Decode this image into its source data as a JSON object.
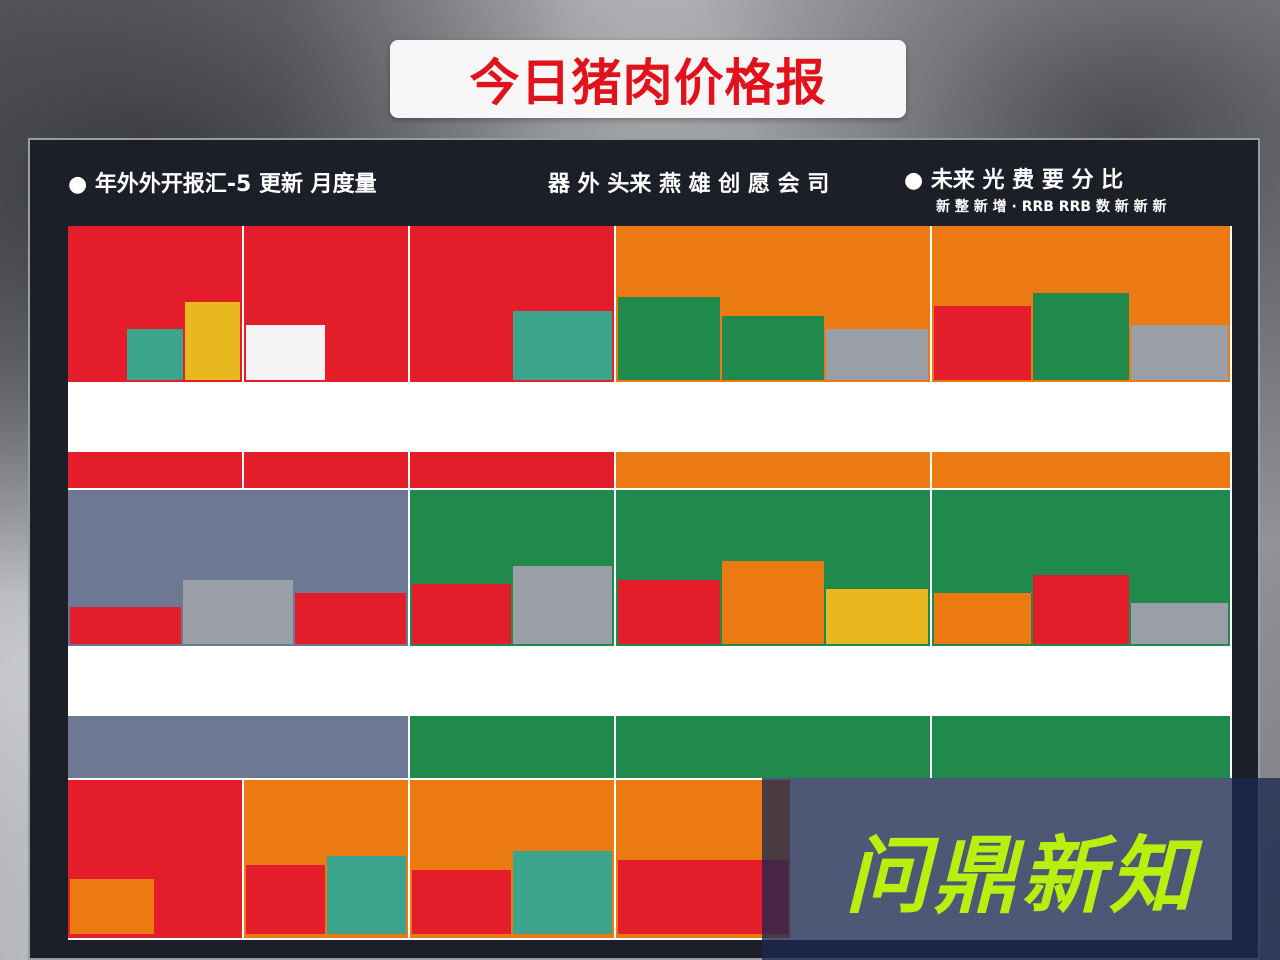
{
  "title": "今日猪肉价格报",
  "header": {
    "left": "● 年外外开报汇-5 更新 月度量",
    "mid": "器 外 头来 燕 雄 创 愿 会 司",
    "right": "● 未来 光 费 要 分 比",
    "right_sub": "新 整 新 增 · RRB RRB 数 新 新 新"
  },
  "colors": {
    "red": "#e41d2b",
    "green": "#1f8a4c",
    "orange": "#ec7a12",
    "slate": "#6c7894",
    "teal": "#3aa58c",
    "gray": "#9a9ea6",
    "yellow": "#e8b81e",
    "title_red": "#e1121b",
    "watermark_green": "#b7f00f"
  },
  "watermark": "问鼎新知"
}
